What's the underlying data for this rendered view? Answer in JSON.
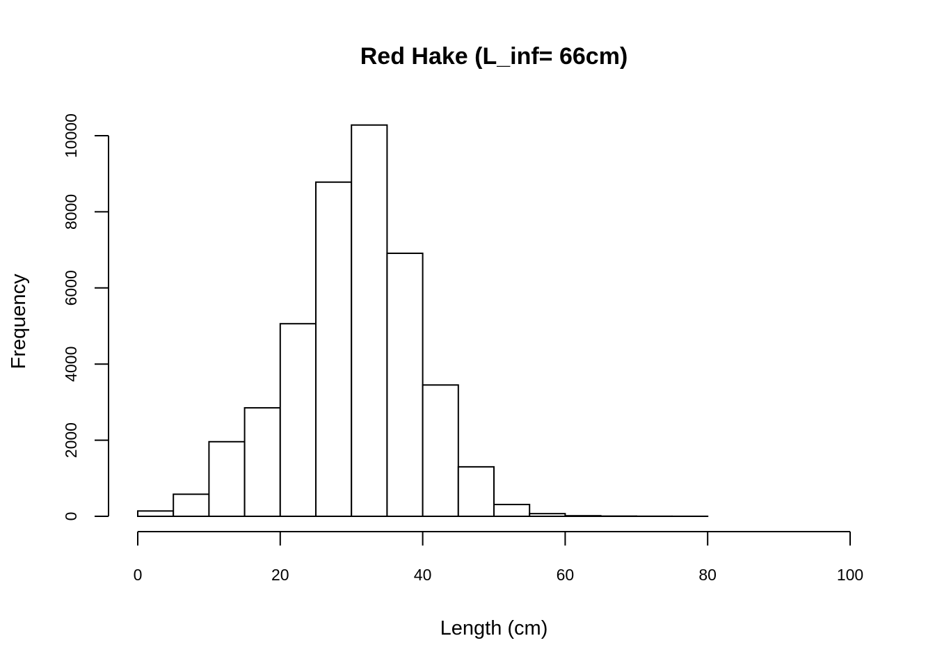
{
  "chart_data": {
    "type": "bar",
    "title": "Red Hake (L_inf= 66cm)",
    "xlabel": "Length (cm)",
    "ylabel": "Frequency",
    "bin_edges": [
      0,
      5,
      10,
      15,
      20,
      25,
      30,
      35,
      40,
      45,
      50,
      55,
      60,
      65,
      70,
      75,
      80,
      85,
      90,
      95,
      100
    ],
    "values": [
      140,
      580,
      1960,
      2850,
      5060,
      8780,
      10280,
      6910,
      3450,
      1300,
      310,
      70,
      15,
      5,
      2,
      1,
      0,
      0,
      0,
      0
    ],
    "xlim": [
      0,
      100
    ],
    "ylim": [
      0,
      10000
    ],
    "x_ticks": [
      0,
      20,
      40,
      60,
      80,
      100
    ],
    "x_tick_labels": [
      "0",
      "20",
      "40",
      "60",
      "80",
      "100"
    ],
    "y_ticks": [
      0,
      2000,
      4000,
      6000,
      8000,
      10000
    ],
    "y_tick_labels": [
      "0",
      "2000",
      "4000",
      "6000",
      "8000",
      "10000"
    ],
    "grid": false,
    "bar_fill": "#ffffff",
    "bar_stroke": "#000000"
  }
}
